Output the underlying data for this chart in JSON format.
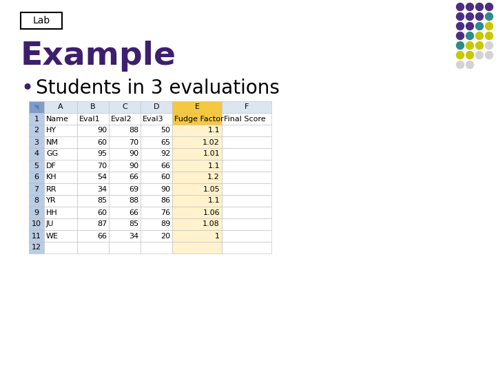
{
  "title": "Example",
  "lab_label": "Lab",
  "bullet_text": "Students in 3 evaluations",
  "col_labels": [
    "",
    "Name",
    "Eval1",
    "Eval2",
    "Eval3",
    "Fudge Factor",
    "Final Score"
  ],
  "rows": [
    [
      "2",
      "HY",
      "90",
      "88",
      "50",
      "1.1",
      ""
    ],
    [
      "3",
      "NM",
      "60",
      "70",
      "65",
      "1.02",
      ""
    ],
    [
      "4",
      "GG",
      "95",
      "90",
      "92",
      "1.01",
      ""
    ],
    [
      "5",
      "DF",
      "70",
      "90",
      "66",
      "1.1",
      ""
    ],
    [
      "6",
      "KH",
      "54",
      "66",
      "60",
      "1.2",
      ""
    ],
    [
      "7",
      "RR",
      "34",
      "69",
      "90",
      "1.05",
      ""
    ],
    [
      "8",
      "YR",
      "85",
      "88",
      "86",
      "1.1",
      ""
    ],
    [
      "9",
      "HH",
      "60",
      "66",
      "76",
      "1.06",
      ""
    ],
    [
      "10",
      "JU",
      "87",
      "85",
      "89",
      "1.08",
      ""
    ],
    [
      "11",
      "WE",
      "66",
      "34",
      "20",
      "1",
      ""
    ],
    [
      "12",
      "",
      "",
      "",
      "",
      "",
      ""
    ]
  ],
  "bg_color": "#ffffff",
  "header_bg": "#f5c842",
  "row_num_col_bg": "#b8cce4",
  "col_letter_bg": "#dce6f1",
  "corner_bg": "#7f9dc8",
  "e_col_bg": "#fff2cc",
  "grid_color": "#bbbbbb",
  "title_color": "#3d1f6e",
  "bullet_color": "#3d1f6e",
  "lab_fontsize": 10,
  "title_fontsize": 34,
  "bullet_fontsize": 20,
  "table_fontsize": 8,
  "dot_colors_grid": [
    [
      "#4b2e83",
      "#4b2e83",
      "#4b2e83",
      "#4b2e83"
    ],
    [
      "#4b2e83",
      "#4b2e83",
      "#4b2e83",
      "#2e8b8b"
    ],
    [
      "#4b2e83",
      "#4b2e83",
      "#2e8b8b",
      "#c8c800"
    ],
    [
      "#4b2e83",
      "#2e8b8b",
      "#c8c800",
      "#c8c800"
    ],
    [
      "#2e8b8b",
      "#c8c800",
      "#c8c800",
      "#d3d3d3"
    ],
    [
      "#c8c800",
      "#c8c800",
      "#d3d3d3",
      "#d3d3d3"
    ],
    [
      "#d3d3d3",
      "#d3d3d3",
      "none",
      "none"
    ]
  ]
}
